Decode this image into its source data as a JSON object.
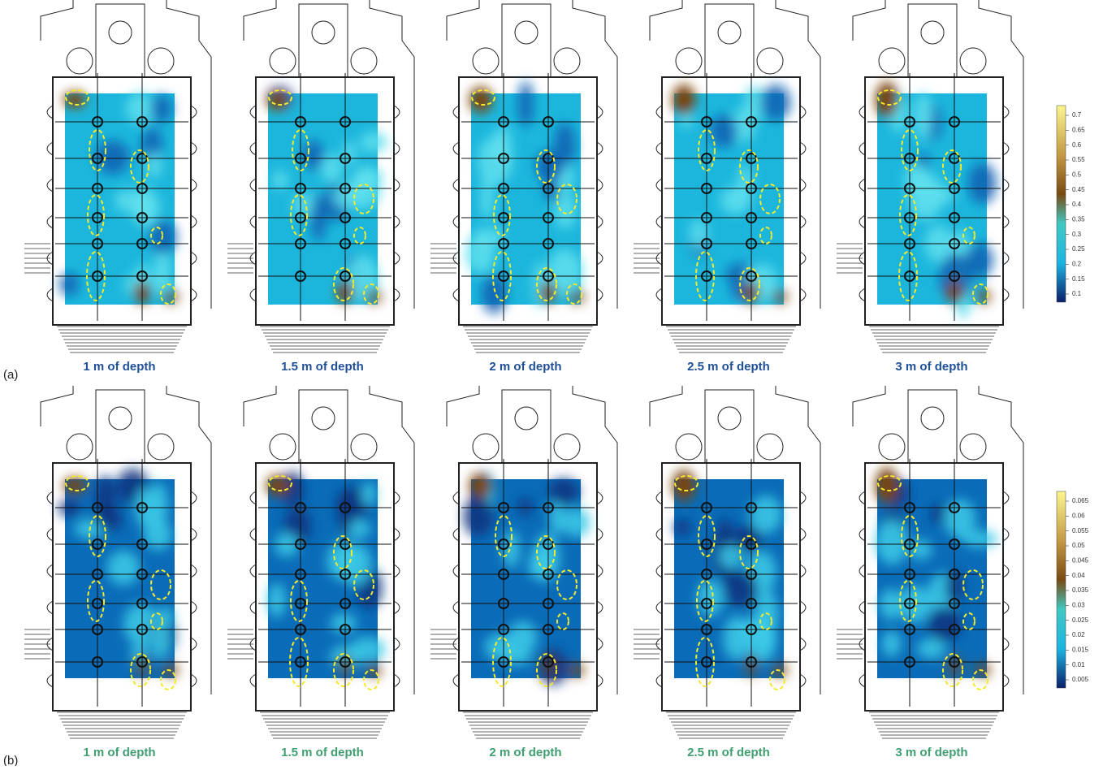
{
  "rows": [
    {
      "label": "(a)",
      "captions": [
        "1 m of depth",
        "1.5 m of depth",
        "2 m of depth",
        "2.5 m of depth",
        "3 m of depth"
      ],
      "colorbar_ticks": [
        "0.7",
        "0.65",
        "0.6",
        "0.55",
        "0.5",
        "0.45",
        "0.4",
        "0.35",
        "0.3",
        "0.25",
        "0.2",
        "0.15",
        "0.1"
      ]
    },
    {
      "label": "(b)",
      "captions": [
        "1 m of depth",
        "1.5 m of depth",
        "2 m of depth",
        "2.5 m of depth",
        "3 m of depth"
      ],
      "colorbar_ticks": [
        "0.065",
        "0.06",
        "0.055",
        "0.05",
        "0.045",
        "0.04",
        "0.035",
        "0.03",
        "0.025",
        "0.02",
        "0.015",
        "0.01",
        "0.005"
      ]
    }
  ]
}
